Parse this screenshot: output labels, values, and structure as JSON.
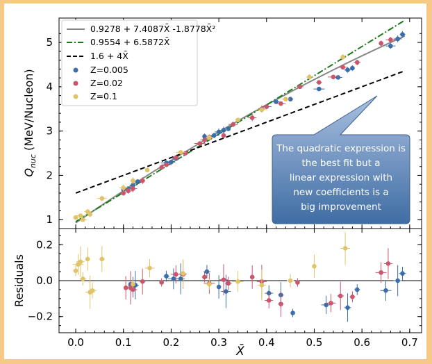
{
  "chart_data": [
    {
      "type": "scatter",
      "panel": "top",
      "ylabel_main": "Q",
      "ylabel_sub": "nuc",
      "ylabel_rest": " (MeV/Nucleon)",
      "xlim": [
        -0.035,
        0.725
      ],
      "ylim": [
        0.8,
        5.55
      ],
      "yticks": [
        1,
        2,
        3,
        4,
        5
      ],
      "ytick_labels": [
        "1",
        "2",
        "3",
        "4",
        "5"
      ],
      "grid": false,
      "legend_position": "upper left",
      "lines": [
        {
          "name": "0.9278 + 7.4087X̄ -1.8778X̄²",
          "kind": "quadratic",
          "coef": [
            0.9278,
            7.4087,
            -1.8778
          ],
          "color": "#888888",
          "style": "solid",
          "x_range": [
            0.0,
            0.69
          ]
        },
        {
          "name": "0.9554 + 6.5872X̄",
          "kind": "linear",
          "coef": [
            0.9554,
            6.5872
          ],
          "color": "#1a7a1a",
          "style": "dashdot",
          "x_range": [
            0.0,
            0.69
          ]
        },
        {
          "name": "1.6 + 4X̄",
          "kind": "linear",
          "coef": [
            1.6,
            4.0
          ],
          "color": "#000000",
          "style": "dashed",
          "x_range": [
            0.0,
            0.69
          ]
        }
      ],
      "series": [
        {
          "name": "Z=0.005",
          "color": "#3b6ea8",
          "points": [
            [
              0.1,
              1.68
            ],
            [
              0.11,
              1.7
            ],
            [
              0.12,
              1.78
            ],
            [
              0.13,
              1.86
            ],
            [
              0.19,
              2.28
            ],
            [
              0.2,
              2.3
            ],
            [
              0.21,
              2.38
            ],
            [
              0.27,
              2.88
            ],
            [
              0.29,
              2.9
            ],
            [
              0.3,
              2.98
            ],
            [
              0.31,
              3.02
            ],
            [
              0.32,
              3.05
            ],
            [
              0.4,
              3.55
            ],
            [
              0.42,
              3.66
            ],
            [
              0.45,
              3.72
            ],
            [
              0.51,
              3.95
            ],
            [
              0.55,
              4.21
            ],
            [
              0.57,
              4.38
            ],
            [
              0.58,
              4.42
            ],
            [
              0.66,
              4.92
            ],
            [
              0.675,
              5.08
            ],
            [
              0.685,
              5.18
            ]
          ]
        },
        {
          "name": "Z=0.02",
          "color": "#c8566c",
          "points": [
            [
              0.1,
              1.6
            ],
            [
              0.11,
              1.65
            ],
            [
              0.12,
              1.7
            ],
            [
              0.14,
              1.88
            ],
            [
              0.18,
              2.18
            ],
            [
              0.19,
              2.24
            ],
            [
              0.21,
              2.4
            ],
            [
              0.23,
              2.5
            ],
            [
              0.26,
              2.72
            ],
            [
              0.27,
              2.8
            ],
            [
              0.28,
              2.86
            ],
            [
              0.31,
              2.9
            ],
            [
              0.33,
              3.15
            ],
            [
              0.37,
              3.3
            ],
            [
              0.39,
              3.5
            ],
            [
              0.4,
              3.55
            ],
            [
              0.43,
              3.62
            ],
            [
              0.47,
              4.0
            ],
            [
              0.51,
              4.1
            ],
            [
              0.54,
              4.22
            ],
            [
              0.56,
              4.44
            ],
            [
              0.59,
              4.55
            ],
            [
              0.64,
              4.98
            ],
            [
              0.66,
              5.06
            ]
          ]
        },
        {
          "name": "Z=0.1",
          "color": "#e0c46a",
          "points": [
            [
              0.0,
              1.05
            ],
            [
              0.01,
              1.09
            ],
            [
              0.015,
              1.0
            ],
            [
              0.025,
              1.18
            ],
            [
              0.03,
              1.12
            ],
            [
              0.055,
              1.48
            ],
            [
              0.1,
              1.72
            ],
            [
              0.12,
              1.88
            ],
            [
              0.15,
              2.12
            ],
            [
              0.22,
              2.52
            ],
            [
              0.28,
              2.85
            ],
            [
              0.34,
              3.25
            ],
            [
              0.39,
              3.48
            ],
            [
              0.44,
              3.72
            ],
            [
              0.49,
              4.22
            ],
            [
              0.56,
              4.67
            ]
          ]
        }
      ],
      "annotation": "The quadratic expression is the best fit but a linear expression with new coefficients is a big improvement"
    },
    {
      "type": "scatter",
      "panel": "bottom",
      "ylabel": "Residuals",
      "xlabel": "X̄",
      "xlim": [
        -0.035,
        0.725
      ],
      "ylim": [
        -0.29,
        0.29
      ],
      "xticks": [
        0.0,
        0.1,
        0.2,
        0.3,
        0.4,
        0.5,
        0.6,
        0.7
      ],
      "xtick_labels": [
        "0.0",
        "0.1",
        "0.2",
        "0.3",
        "0.4",
        "0.5",
        "0.6",
        "0.7"
      ],
      "yticks": [
        -0.2,
        0.0,
        0.2
      ],
      "ytick_labels": [
        "−0.2",
        "0.0",
        "0.2"
      ],
      "zero_line": true,
      "series": [
        {
          "name": "Z=0.005",
          "color": "#3b6ea8",
          "points": [
            [
              0.115,
              -0.02
            ],
            [
              0.12,
              -0.03
            ],
            [
              0.125,
              -0.025
            ],
            [
              0.19,
              0.025
            ],
            [
              0.205,
              0.01
            ],
            [
              0.22,
              0.01
            ],
            [
              0.275,
              0.05
            ],
            [
              0.3,
              -0.035
            ],
            [
              0.315,
              -0.06
            ],
            [
              0.405,
              -0.07
            ],
            [
              0.43,
              -0.08
            ],
            [
              0.455,
              -0.18
            ],
            [
              0.525,
              -0.135
            ],
            [
              0.57,
              -0.15
            ],
            [
              0.59,
              -0.05
            ],
            [
              0.65,
              -0.055
            ],
            [
              0.675,
              0.0
            ],
            [
              0.685,
              0.04
            ]
          ]
        },
        {
          "name": "Z=0.02",
          "color": "#c8566c",
          "points": [
            [
              0.105,
              -0.04
            ],
            [
              0.115,
              -0.04
            ],
            [
              0.12,
              -0.05
            ],
            [
              0.14,
              -0.005
            ],
            [
              0.18,
              -0.01
            ],
            [
              0.21,
              0.035
            ],
            [
              0.225,
              0.035
            ],
            [
              0.27,
              0.02
            ],
            [
              0.28,
              -0.015
            ],
            [
              0.31,
              0.005
            ],
            [
              0.32,
              -0.015
            ],
            [
              0.37,
              0.02
            ],
            [
              0.39,
              -0.005
            ],
            [
              0.405,
              -0.11
            ],
            [
              0.43,
              -0.13
            ],
            [
              0.465,
              -0.01
            ],
            [
              0.535,
              -0.125
            ],
            [
              0.555,
              -0.085
            ],
            [
              0.58,
              -0.09
            ],
            [
              0.64,
              0.045
            ],
            [
              0.655,
              0.095
            ]
          ]
        },
        {
          "name": "Z=0.1",
          "color": "#e0c46a",
          "points": [
            [
              0.0,
              0.055
            ],
            [
              0.005,
              0.09
            ],
            [
              0.01,
              0.105
            ],
            [
              0.015,
              0.01
            ],
            [
              0.025,
              0.12
            ],
            [
              0.03,
              -0.065
            ],
            [
              0.035,
              -0.055
            ],
            [
              0.055,
              0.12
            ],
            [
              0.12,
              -0.02
            ],
            [
              0.155,
              0.07
            ],
            [
              0.225,
              0.04
            ],
            [
              0.28,
              -0.02
            ],
            [
              0.34,
              -0.005
            ],
            [
              0.39,
              -0.025
            ],
            [
              0.45,
              0.0
            ],
            [
              0.5,
              0.08
            ],
            [
              0.565,
              0.18
            ]
          ]
        }
      ]
    }
  ],
  "colors": {
    "panel_background": "#f6c986",
    "callout_fill": "#5d82b0",
    "callout_text": "#ffffff"
  }
}
